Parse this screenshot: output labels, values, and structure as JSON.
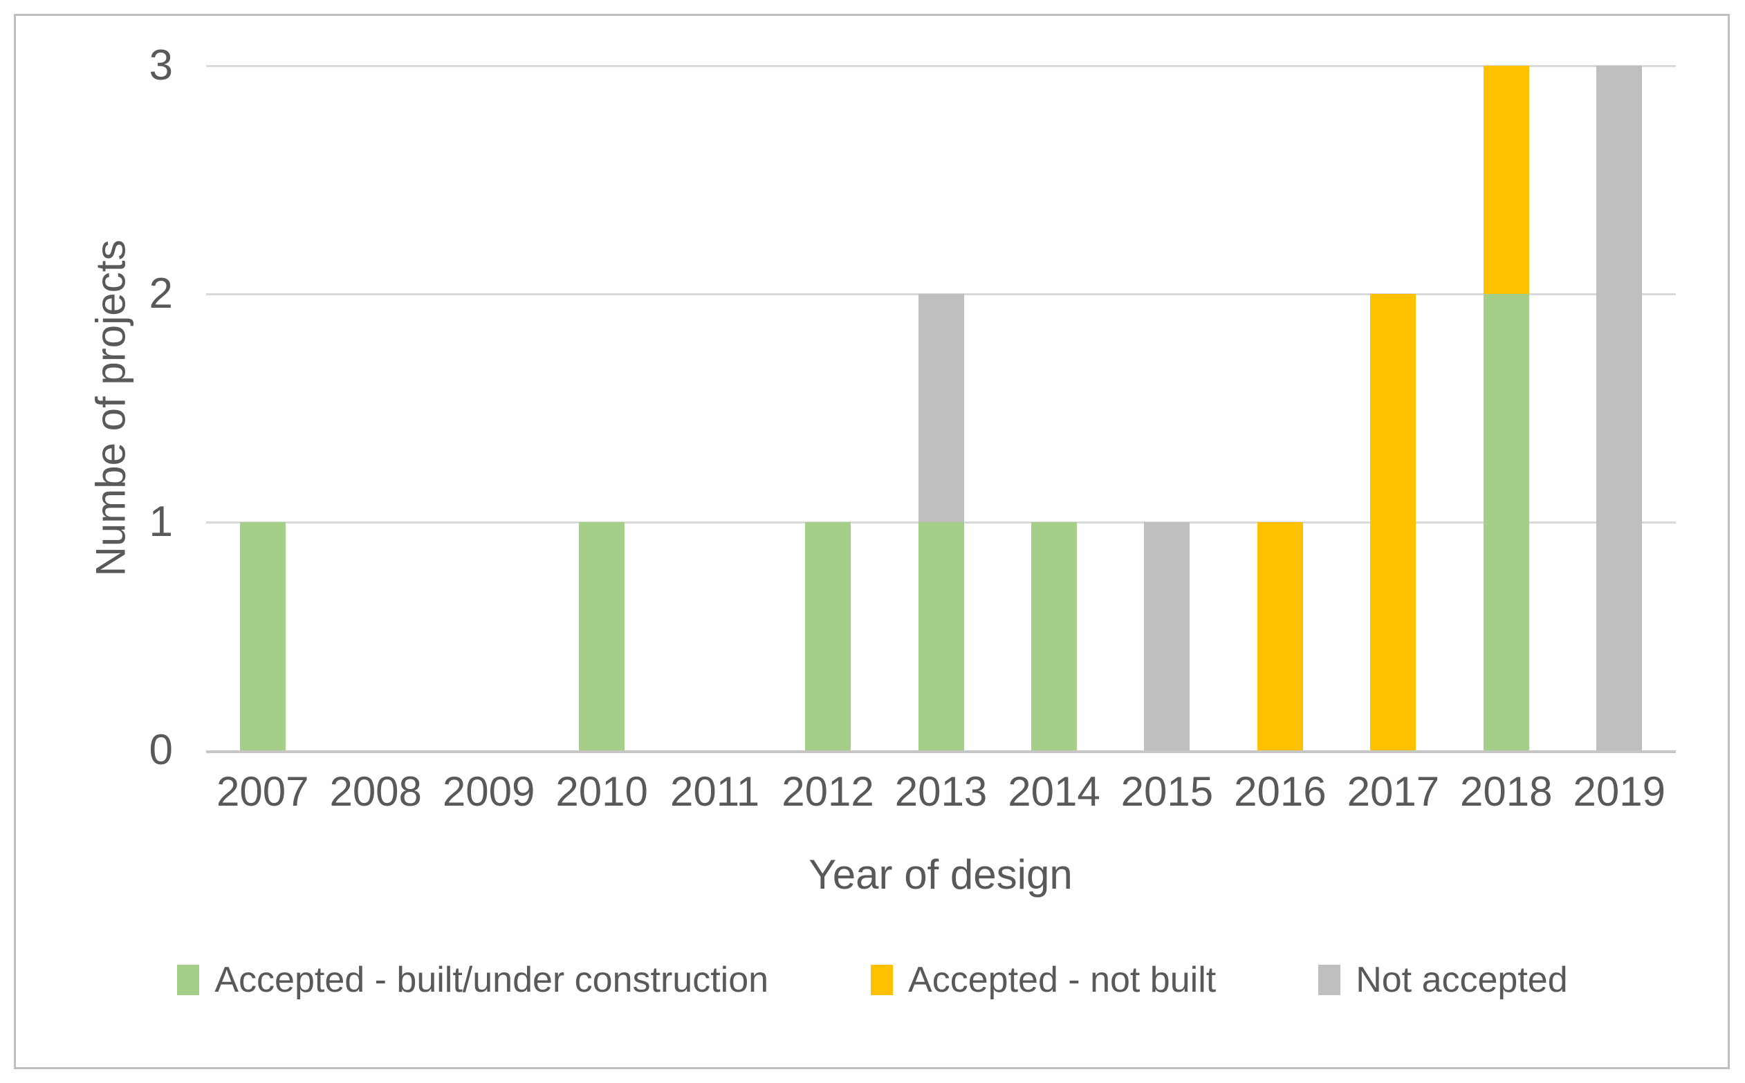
{
  "figure": {
    "background_color": "#FFFFFF",
    "frame_border_color": "#BFBFBF",
    "text_color": "#595959",
    "gridline_color": "#D9D9D9",
    "axis_line_color": "#C6C6C6"
  },
  "chart_data": {
    "type": "bar",
    "stacked": true,
    "title": "",
    "xlabel": "Year of design",
    "ylabel": "Numbe of projects",
    "categories": [
      "2007",
      "2008",
      "2009",
      "2010",
      "2011",
      "2012",
      "2013",
      "2014",
      "2015",
      "2016",
      "2017",
      "2018",
      "2019"
    ],
    "series": [
      {
        "name": "Accepted - built/under construction",
        "color": "#A5CE88",
        "values": [
          1,
          0,
          0,
          1,
          0,
          1,
          1,
          1,
          0,
          0,
          0,
          2,
          0
        ]
      },
      {
        "name": "Accepted - not built",
        "color": "#FFC000",
        "values": [
          0,
          0,
          0,
          0,
          0,
          0,
          0,
          0,
          0,
          1,
          2,
          1,
          0
        ]
      },
      {
        "name": "Not accepted",
        "color": "#BFBFBF",
        "values": [
          0,
          0,
          0,
          0,
          0,
          0,
          1,
          0,
          1,
          0,
          0,
          0,
          3
        ]
      }
    ],
    "y_ticks": [
      0,
      1,
      2,
      3
    ],
    "ylim": [
      0,
      3
    ],
    "grid": "horizontal",
    "legend_position": "bottom"
  }
}
